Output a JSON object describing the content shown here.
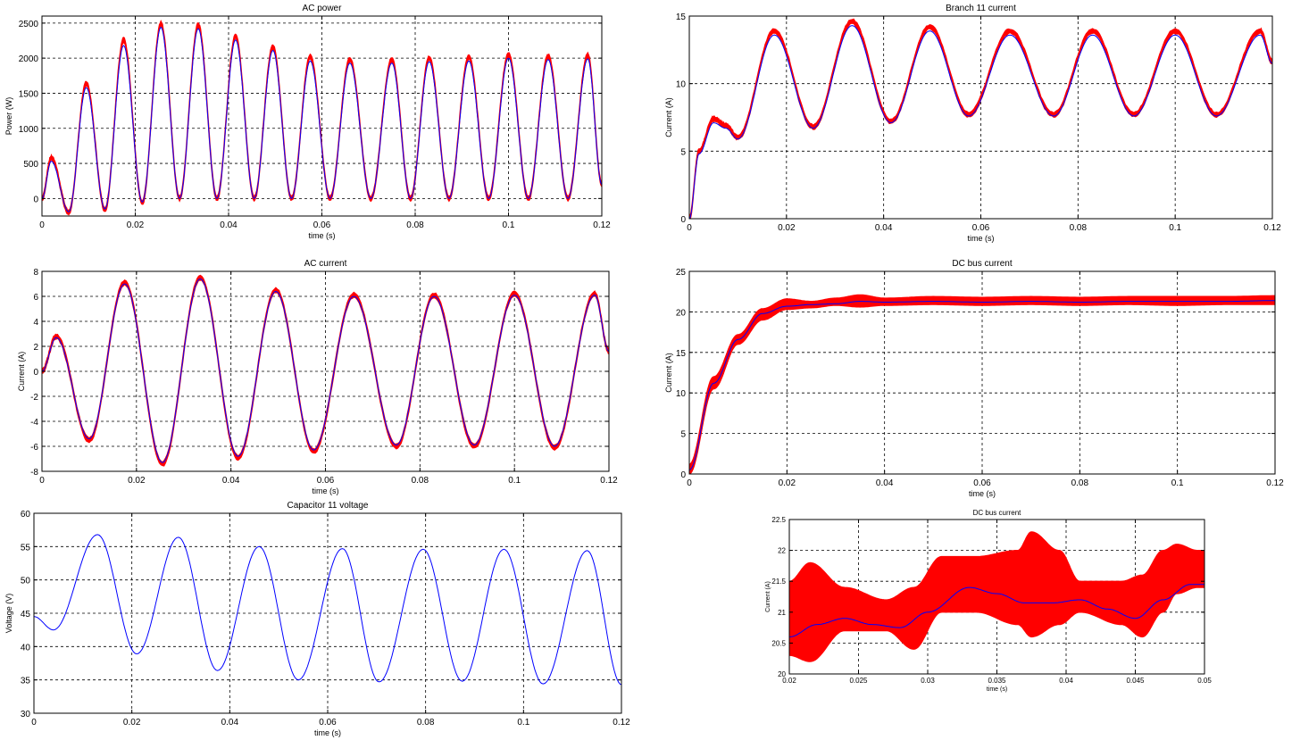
{
  "colors": {
    "band": "#ff0000",
    "line": "#0000ff",
    "frame": "#000000",
    "background": "#ffffff"
  },
  "chart_data": [
    {
      "id": "ac-power",
      "type": "line",
      "title": "AC power",
      "xlabel": "time (s)",
      "ylabel": "Power (W)",
      "xlim": [
        0,
        0.12
      ],
      "ylim": [
        -250,
        2600
      ],
      "xticks": [
        0,
        0.02,
        0.04,
        0.06,
        0.08,
        0.1,
        0.12
      ],
      "xticklabels": [
        "0",
        "0.02",
        "0.04",
        "0.06",
        "0.08",
        "0.1",
        "0.12"
      ],
      "yticks": [
        0,
        500,
        1000,
        1500,
        2000,
        2500
      ],
      "yticklabels": [
        "0",
        "500",
        "1000",
        "1500",
        "2000",
        "2500"
      ],
      "grid": true,
      "series": [
        {
          "kind": "band",
          "color": "red",
          "peak_times": [
            0.002,
            0.0095,
            0.0175,
            0.0255,
            0.0335,
            0.0415,
            0.0495,
            0.0575,
            0.066,
            0.075,
            0.083,
            0.0915,
            0.1,
            0.1085,
            0.117
          ],
          "peaks": [
            580,
            1640,
            2260,
            2490,
            2470,
            2310,
            2160,
            2020,
            1980,
            1980,
            2000,
            2020,
            2050,
            2030,
            2040
          ],
          "troughs": [
            -200,
            -160,
            -60,
            0,
            0,
            0,
            0,
            0,
            0,
            0,
            0,
            0,
            0,
            0
          ],
          "final": 200
        },
        {
          "kind": "line",
          "color": "blue",
          "peak_times": [
            0.002,
            0.0095,
            0.0175,
            0.0255,
            0.0335,
            0.0415,
            0.0495,
            0.0575,
            0.066,
            0.075,
            0.083,
            0.0915,
            0.1,
            0.1085,
            0.117
          ],
          "peaks": [
            530,
            1580,
            2180,
            2440,
            2420,
            2260,
            2110,
            1960,
            1930,
            1930,
            1950,
            1960,
            2000,
            1980,
            1990
          ],
          "troughs": [
            -190,
            -150,
            -50,
            0,
            0,
            0,
            0,
            0,
            0,
            0,
            0,
            0,
            0,
            0
          ],
          "final": 200
        }
      ]
    },
    {
      "id": "branch-11-current",
      "type": "line",
      "title": "Branch 11 current",
      "xlabel": "time (s)",
      "ylabel": "Current (A)",
      "xlim": [
        0,
        0.12
      ],
      "ylim": [
        0,
        15
      ],
      "xticks": [
        0,
        0.02,
        0.04,
        0.06,
        0.08,
        0.1,
        0.12
      ],
      "xticklabels": [
        "0",
        "0.02",
        "0.04",
        "0.06",
        "0.08",
        "0.1",
        "0.12"
      ],
      "yticks": [
        0,
        5,
        10,
        15
      ],
      "yticklabels": [
        "0",
        "5",
        "10",
        "15"
      ],
      "grid": true,
      "series": [
        {
          "kind": "band",
          "color": "red",
          "x": [
            0,
            0.002,
            0.005,
            0.0075,
            0.01,
            0.0175,
            0.0255,
            0.0335,
            0.0415,
            0.0495,
            0.0575,
            0.066,
            0.075,
            0.083,
            0.0915,
            0.1,
            0.1085,
            0.1175,
            0.12
          ],
          "y": [
            0,
            5.0,
            7.4,
            6.9,
            6.0,
            13.9,
            6.8,
            14.6,
            7.2,
            14.2,
            7.7,
            13.9,
            7.7,
            13.9,
            7.7,
            13.9,
            7.7,
            13.9,
            11.6
          ]
        },
        {
          "kind": "line",
          "color": "blue",
          "x": [
            0,
            0.002,
            0.005,
            0.0075,
            0.01,
            0.0175,
            0.0255,
            0.0335,
            0.0415,
            0.0495,
            0.0575,
            0.066,
            0.075,
            0.083,
            0.0915,
            0.1,
            0.1085,
            0.1175,
            0.12
          ],
          "y": [
            0,
            4.8,
            7.1,
            6.7,
            5.9,
            13.6,
            6.7,
            14.3,
            7.1,
            13.9,
            7.6,
            13.6,
            7.6,
            13.6,
            7.6,
            13.6,
            7.6,
            13.6,
            11.5
          ]
        }
      ]
    },
    {
      "id": "ac-current",
      "type": "line",
      "title": "AC current",
      "xlabel": "time (s)",
      "ylabel": "Current (A)",
      "xlim": [
        0,
        0.12
      ],
      "ylim": [
        -8,
        8
      ],
      "xticks": [
        0,
        0.02,
        0.04,
        0.06,
        0.08,
        0.1,
        0.12
      ],
      "xticklabels": [
        "0",
        "0.02",
        "0.04",
        "0.06",
        "0.08",
        "0.1",
        "0.12"
      ],
      "yticks": [
        -8,
        -6,
        -4,
        -2,
        0,
        2,
        4,
        6,
        8
      ],
      "yticklabels": [
        "-8",
        "-6",
        "-4",
        "-2",
        "0",
        "2",
        "4",
        "6",
        "8"
      ],
      "grid": true,
      "series": [
        {
          "kind": "band",
          "color": "red",
          "x": [
            0,
            0.003,
            0.01,
            0.0175,
            0.0255,
            0.0335,
            0.0415,
            0.0495,
            0.0575,
            0.066,
            0.075,
            0.083,
            0.0915,
            0.1,
            0.1085,
            0.117,
            0.12
          ],
          "y": [
            0,
            2.8,
            -5.5,
            7.1,
            -7.4,
            7.5,
            -6.9,
            6.5,
            -6.4,
            6.1,
            -6.0,
            6.1,
            -6.0,
            6.2,
            -6.1,
            6.2,
            1.6
          ]
        },
        {
          "kind": "line",
          "color": "blue",
          "x": [
            0,
            0.003,
            0.01,
            0.0175,
            0.0255,
            0.0335,
            0.0415,
            0.0495,
            0.0575,
            0.066,
            0.075,
            0.083,
            0.0915,
            0.1,
            0.1085,
            0.117,
            0.12
          ],
          "y": [
            0,
            2.7,
            -5.4,
            7.0,
            -7.3,
            7.4,
            -6.8,
            6.4,
            -6.3,
            6.0,
            -5.9,
            6.0,
            -5.9,
            6.1,
            -6.0,
            6.1,
            1.6
          ]
        }
      ]
    },
    {
      "id": "dc-bus-current",
      "type": "line",
      "title": "DC bus current",
      "xlabel": "time (s)",
      "ylabel": "Current (A)",
      "xlim": [
        0,
        0.12
      ],
      "ylim": [
        0,
        25
      ],
      "xticks": [
        0,
        0.02,
        0.04,
        0.06,
        0.08,
        0.1,
        0.12
      ],
      "xticklabels": [
        "0",
        "0.02",
        "0.04",
        "0.06",
        "0.08",
        "0.1",
        "0.12"
      ],
      "yticks": [
        0,
        5,
        10,
        15,
        20,
        25
      ],
      "yticklabels": [
        "0",
        "5",
        "10",
        "15",
        "20",
        "25"
      ],
      "grid": true,
      "series": [
        {
          "kind": "band",
          "color": "red",
          "x": [
            0,
            0.005,
            0.01,
            0.015,
            0.02,
            0.025,
            0.03,
            0.035,
            0.04,
            0.05,
            0.06,
            0.07,
            0.08,
            0.09,
            0.1,
            0.11,
            0.12
          ],
          "y_low": [
            0,
            10.5,
            16.0,
            19.0,
            20.3,
            20.5,
            20.8,
            20.6,
            20.8,
            20.9,
            20.8,
            20.9,
            20.8,
            20.9,
            20.8,
            20.9,
            20.9
          ],
          "y_high": [
            1.2,
            12.0,
            17.2,
            20.4,
            21.6,
            21.3,
            21.7,
            22.1,
            21.7,
            21.9,
            21.8,
            21.9,
            21.8,
            21.9,
            21.9,
            21.9,
            22.0
          ]
        },
        {
          "kind": "line",
          "color": "blue",
          "x": [
            0,
            0.005,
            0.01,
            0.015,
            0.02,
            0.025,
            0.03,
            0.035,
            0.04,
            0.05,
            0.06,
            0.07,
            0.08,
            0.09,
            0.1,
            0.11,
            0.12
          ],
          "y": [
            0.5,
            11.2,
            16.6,
            19.8,
            20.7,
            20.9,
            21.0,
            21.3,
            21.2,
            21.3,
            21.2,
            21.3,
            21.2,
            21.3,
            21.3,
            21.3,
            21.4
          ]
        }
      ]
    },
    {
      "id": "capacitor-11-voltage",
      "type": "line",
      "title": "Capacitor 11 voltage",
      "xlabel": "time (s)",
      "ylabel": "Voltage (V)",
      "xlim": [
        0,
        0.12
      ],
      "ylim": [
        30,
        60
      ],
      "xticks": [
        0,
        0.02,
        0.04,
        0.06,
        0.08,
        0.1,
        0.12
      ],
      "xticklabels": [
        "0",
        "0.02",
        "0.04",
        "0.06",
        "0.08",
        "0.1",
        "0.12"
      ],
      "yticks": [
        30,
        35,
        40,
        45,
        50,
        55,
        60
      ],
      "yticklabels": [
        "30",
        "35",
        "40",
        "45",
        "50",
        "55",
        "60"
      ],
      "grid": true,
      "series": [
        {
          "kind": "line",
          "color": "blue",
          "x": [
            0,
            0.004,
            0.013,
            0.021,
            0.0295,
            0.0375,
            0.046,
            0.054,
            0.063,
            0.0705,
            0.0795,
            0.0875,
            0.096,
            0.104,
            0.113,
            0.12
          ],
          "y": [
            44.5,
            42.5,
            56.8,
            38.9,
            56.4,
            36.4,
            55.0,
            35.0,
            54.7,
            34.7,
            54.6,
            34.8,
            54.6,
            34.4,
            54.4,
            34.3
          ]
        }
      ]
    },
    {
      "id": "dc-bus-current-zoom",
      "type": "line",
      "title": "DC bus current",
      "xlabel": "time (s)",
      "ylabel": "Current (A)",
      "xlim": [
        0.02,
        0.05
      ],
      "ylim": [
        20,
        22.5
      ],
      "xticks": [
        0.02,
        0.025,
        0.03,
        0.035,
        0.04,
        0.045,
        0.05
      ],
      "xticklabels": [
        "0.02",
        "0.025",
        "0.03",
        "0.035",
        "0.04",
        "0.045",
        "0.05"
      ],
      "yticks": [
        20,
        20.5,
        21,
        21.5,
        22,
        22.5
      ],
      "yticklabels": [
        "20",
        "20.5",
        "21",
        "21.5",
        "22",
        "22.5"
      ],
      "grid": true,
      "series": [
        {
          "kind": "band",
          "color": "red",
          "x": [
            0.02,
            0.0215,
            0.024,
            0.027,
            0.029,
            0.031,
            0.0335,
            0.0365,
            0.0375,
            0.0395,
            0.041,
            0.044,
            0.0455,
            0.047,
            0.048,
            0.0495,
            0.05
          ],
          "y_low": [
            20.3,
            20.2,
            20.7,
            20.7,
            20.4,
            21.0,
            21.0,
            20.8,
            20.6,
            20.8,
            21.0,
            20.8,
            20.6,
            21.0,
            21.3,
            21.4,
            21.4
          ],
          "y_high": [
            21.5,
            21.8,
            21.4,
            21.2,
            21.4,
            21.9,
            21.9,
            22.0,
            22.3,
            22.0,
            21.5,
            21.5,
            21.6,
            22.0,
            22.1,
            22.0,
            22.0
          ]
        },
        {
          "kind": "line",
          "color": "blue",
          "x": [
            0.02,
            0.022,
            0.024,
            0.026,
            0.028,
            0.03,
            0.033,
            0.035,
            0.037,
            0.039,
            0.041,
            0.043,
            0.045,
            0.047,
            0.049,
            0.05
          ],
          "y": [
            20.6,
            20.8,
            20.9,
            20.8,
            20.75,
            21.0,
            21.4,
            21.3,
            21.15,
            21.15,
            21.2,
            21.05,
            20.9,
            21.2,
            21.45,
            21.45
          ]
        }
      ]
    }
  ]
}
